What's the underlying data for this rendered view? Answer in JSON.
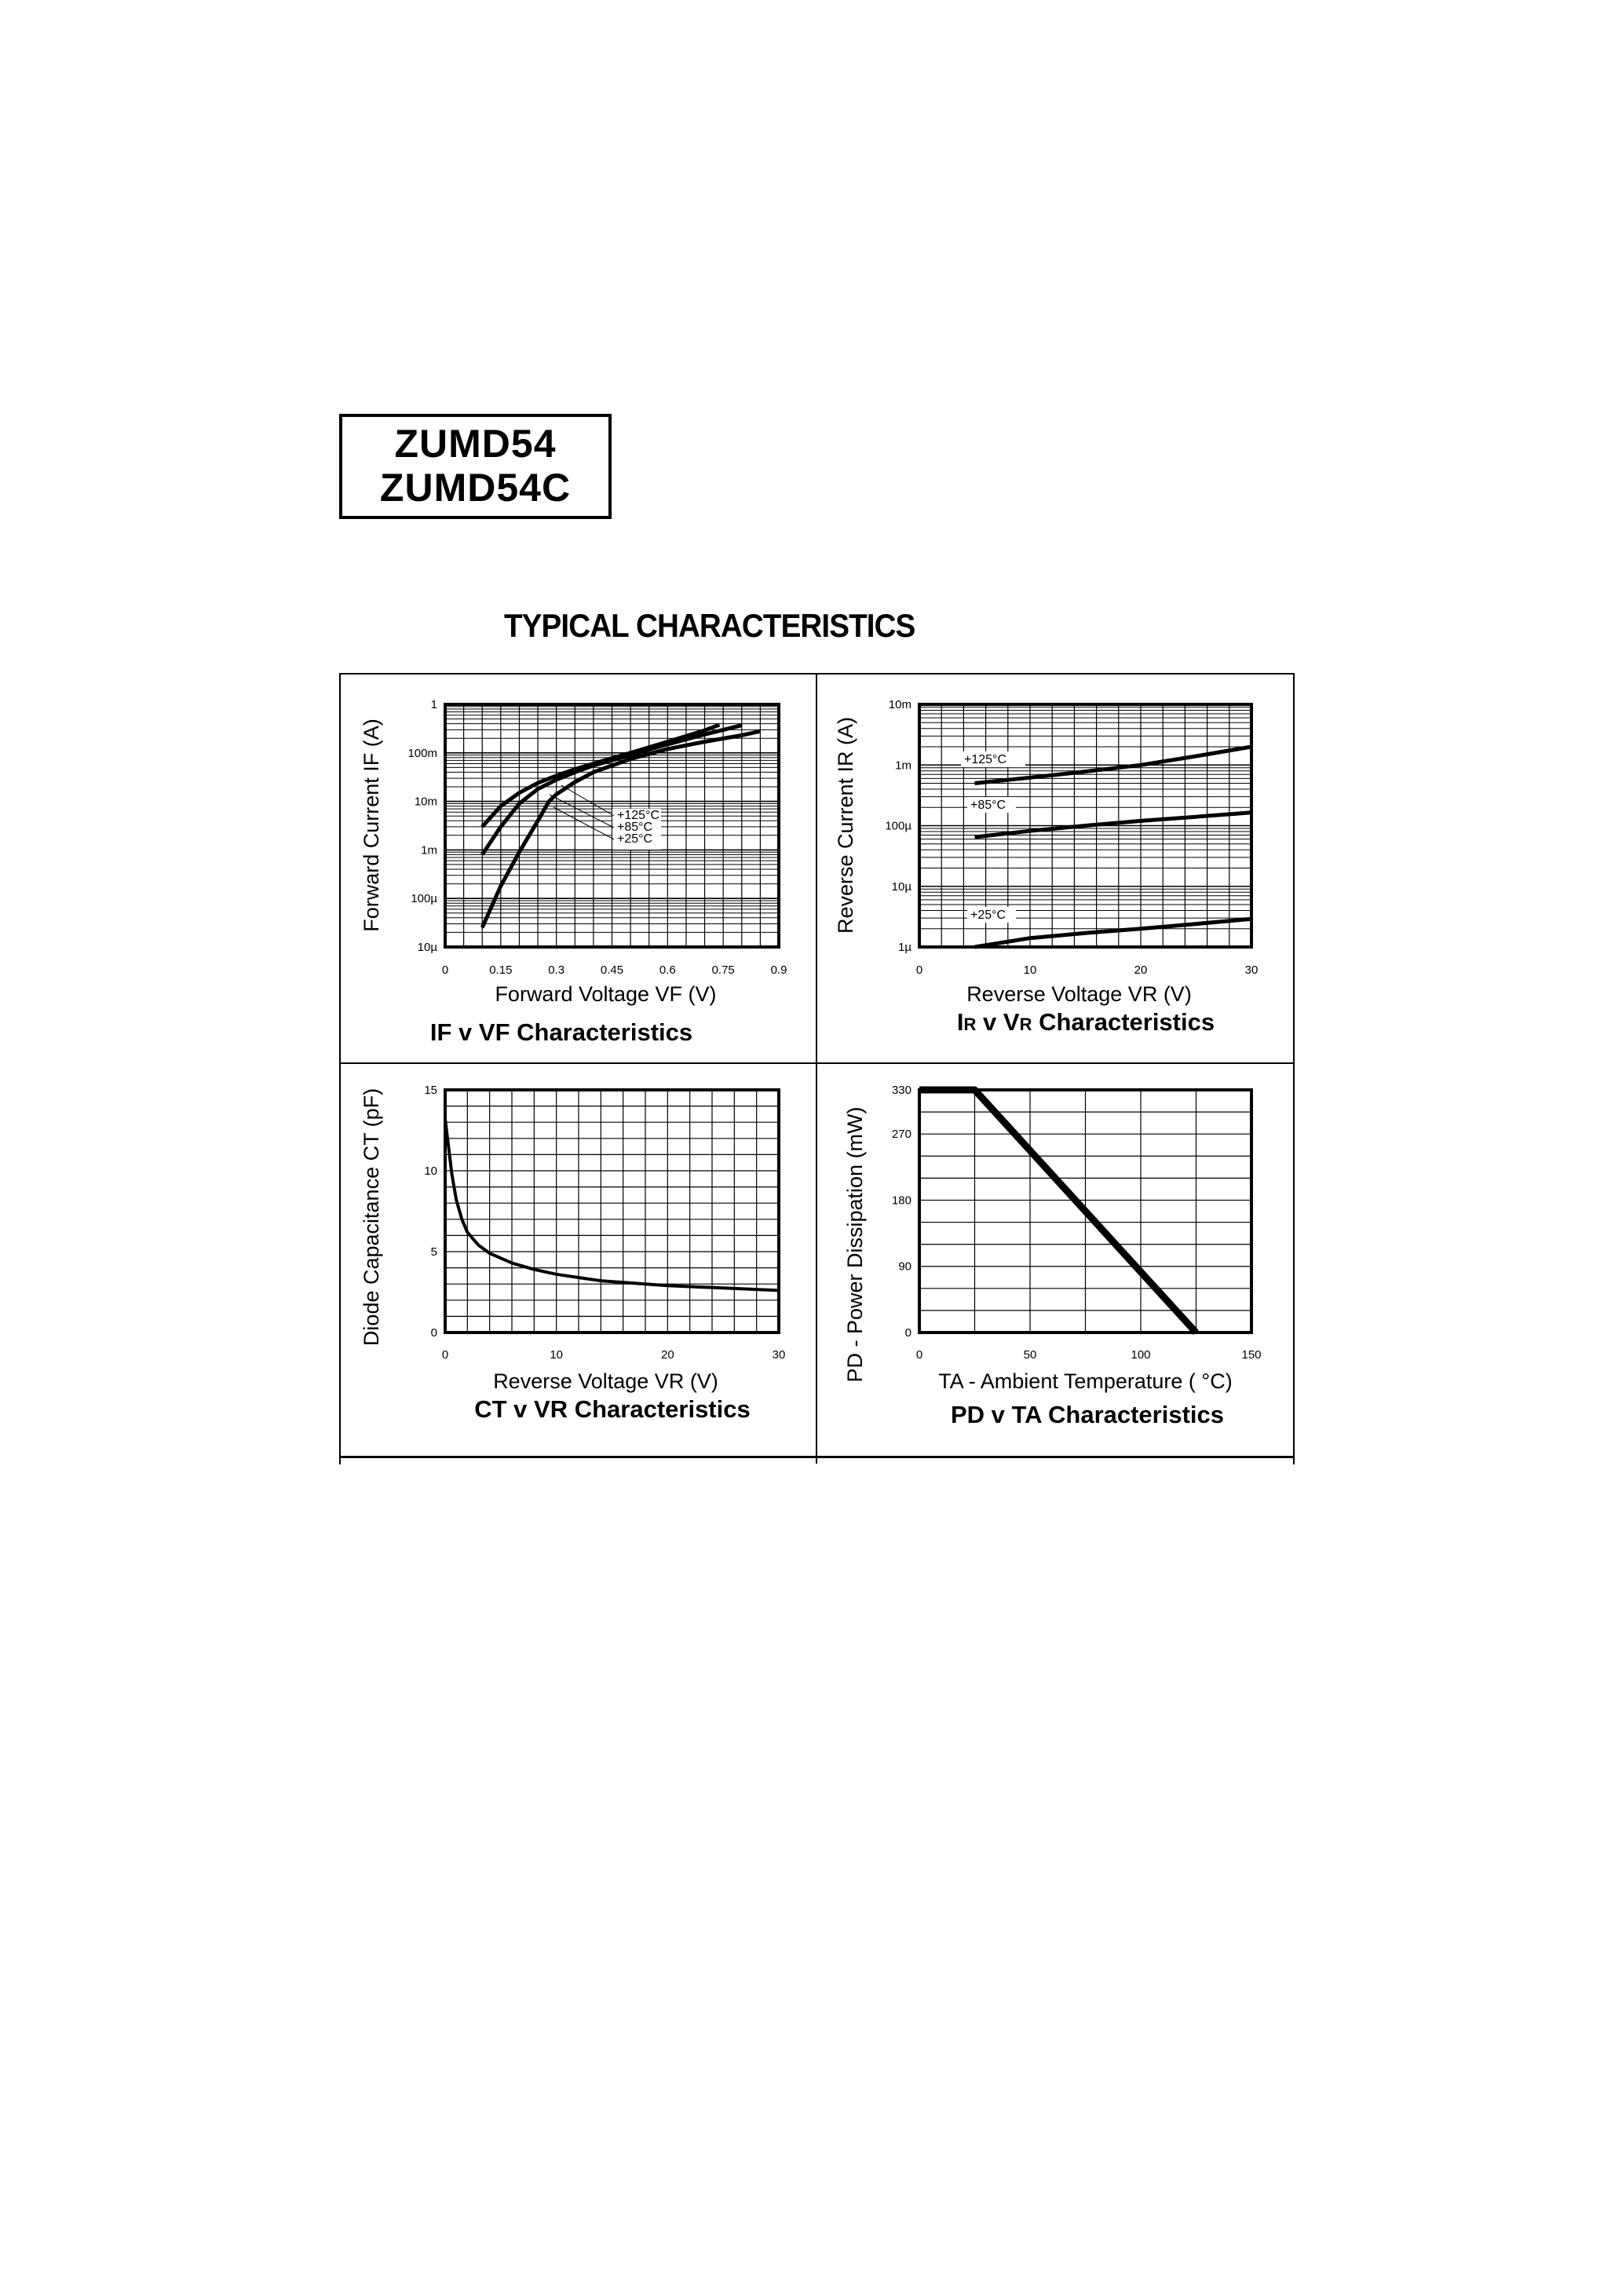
{
  "header": {
    "part_numbers": [
      "ZUMD54",
      "ZUMD54C"
    ],
    "section_title": "TYPICAL CHARACTERISTICS"
  },
  "chart_data": [
    {
      "id": "if_vf",
      "type": "line",
      "title": "IF v VF Characteristics",
      "xlabel": "Forward Voltage VF (V)",
      "ylabel": "Forward Current IF (A)",
      "xscale": "linear",
      "yscale": "log",
      "xlim": [
        0,
        0.9
      ],
      "ylim": [
        1e-05,
        1
      ],
      "x_ticks": [
        "0",
        "0.15",
        "0.3",
        "0.45",
        "0.6",
        "0.75",
        "0.9"
      ],
      "y_ticks": [
        "10µ",
        "100µ",
        "1m",
        "10m",
        "100m",
        "1"
      ],
      "grid": true,
      "legend_annotations": [
        "+125°C",
        "+85°C",
        "+25°C"
      ],
      "series": [
        {
          "name": "+125°C",
          "x": [
            0.1,
            0.15,
            0.2,
            0.25,
            0.3,
            0.35,
            0.4,
            0.5,
            0.6,
            0.7,
            0.74
          ],
          "y": [
            0.003,
            0.008,
            0.015,
            0.024,
            0.034,
            0.046,
            0.06,
            0.1,
            0.17,
            0.29,
            0.38
          ]
        },
        {
          "name": "+85°C",
          "x": [
            0.1,
            0.15,
            0.2,
            0.25,
            0.3,
            0.35,
            0.4,
            0.5,
            0.6,
            0.7,
            0.8
          ],
          "y": [
            0.0008,
            0.003,
            0.009,
            0.018,
            0.028,
            0.04,
            0.055,
            0.09,
            0.15,
            0.24,
            0.37
          ]
        },
        {
          "name": "+25°C",
          "x": [
            0.1,
            0.15,
            0.2,
            0.25,
            0.28,
            0.3,
            0.35,
            0.4,
            0.5,
            0.6,
            0.7,
            0.8,
            0.85
          ],
          "y": [
            2.5e-05,
            0.00018,
            0.0009,
            0.004,
            0.01,
            0.014,
            0.025,
            0.04,
            0.075,
            0.12,
            0.17,
            0.23,
            0.28
          ]
        }
      ]
    },
    {
      "id": "ir_vr",
      "type": "line",
      "title": "IR v VR Characteristics",
      "title_parts": {
        "a": "I",
        "a_sub": "R",
        "mid": " v ",
        "b": "V",
        "b_sub": "R",
        "rest": " Characteristics"
      },
      "xlabel": "Reverse Voltage VR (V)",
      "ylabel": "Reverse Current IR (A)",
      "xscale": "linear",
      "yscale": "log",
      "xlim": [
        0,
        30
      ],
      "ylim": [
        1e-06,
        0.01
      ],
      "x_ticks": [
        "0",
        "10",
        "20",
        "30"
      ],
      "y_ticks": [
        "1µ",
        "10µ",
        "100µ",
        "1m",
        "10m"
      ],
      "grid": true,
      "series": [
        {
          "name": "+125°C",
          "x": [
            5,
            10,
            15,
            20,
            25,
            30
          ],
          "y": [
            0.0005,
            0.00062,
            0.00078,
            0.001,
            0.0014,
            0.002
          ]
        },
        {
          "name": "+85°C",
          "x": [
            5,
            10,
            15,
            20,
            25,
            30
          ],
          "y": [
            6.5e-05,
            8.2e-05,
            0.0001,
            0.00012,
            0.00014,
            0.000165
          ]
        },
        {
          "name": "+25°C",
          "x": [
            5,
            10,
            15,
            20,
            25,
            30
          ],
          "y": [
            1e-06,
            1.4e-06,
            1.7e-06,
            2e-06,
            2.4e-06,
            2.9e-06
          ]
        }
      ]
    },
    {
      "id": "ct_vr",
      "type": "line",
      "title": "CT v VR Characteristics",
      "xlabel": "Reverse Voltage VR (V)",
      "ylabel": "Diode Capacitance CT (pF)",
      "xscale": "linear",
      "yscale": "linear",
      "xlim": [
        0,
        30
      ],
      "ylim": [
        0,
        15
      ],
      "x_ticks": [
        "0",
        "10",
        "20",
        "30"
      ],
      "y_ticks": [
        "0",
        "5",
        "10",
        "15"
      ],
      "grid": true,
      "series": [
        {
          "name": "CT",
          "x": [
            0,
            0.3,
            0.6,
            1,
            1.5,
            2,
            3,
            4,
            6,
            8,
            10,
            12,
            14,
            16,
            18,
            20,
            25,
            30
          ],
          "y": [
            13.2,
            11.5,
            9.8,
            8.2,
            7.0,
            6.2,
            5.4,
            4.9,
            4.3,
            3.9,
            3.6,
            3.4,
            3.2,
            3.1,
            3.0,
            2.9,
            2.75,
            2.6
          ]
        }
      ]
    },
    {
      "id": "pd_ta",
      "type": "line",
      "title": "PD v TA Characteristics",
      "xlabel": "TA - Ambient Temperature ( °C)",
      "ylabel": "PD - Power Dissipation (mW)",
      "xscale": "linear",
      "yscale": "linear",
      "xlim": [
        0,
        150
      ],
      "ylim": [
        0,
        330
      ],
      "x_ticks": [
        "0",
        "50",
        "100",
        "150"
      ],
      "y_ticks": [
        "0",
        "90",
        "180",
        "270",
        "330"
      ],
      "grid": true,
      "series": [
        {
          "name": "PD",
          "x": [
            0,
            25,
            125
          ],
          "y": [
            330,
            330,
            0
          ]
        }
      ]
    }
  ]
}
